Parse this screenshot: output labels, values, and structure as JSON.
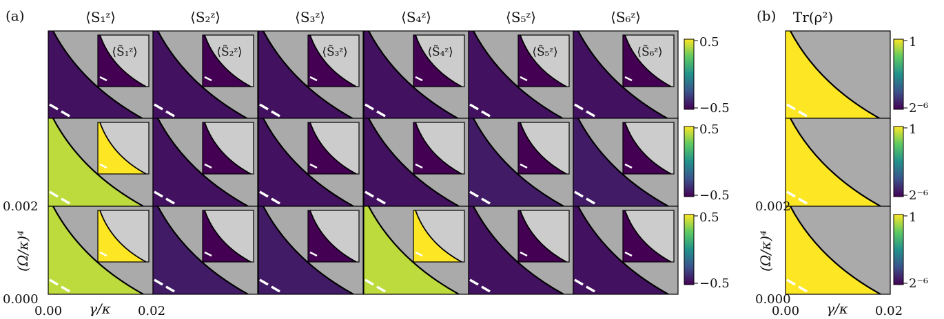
{
  "chart_data": {
    "type": "heatmap",
    "panel_a": {
      "label": "(a)",
      "column_titles": [
        "⟨S₁ᶻ⟩",
        "⟨S₂ᶻ⟩",
        "⟨S₃ᶻ⟩",
        "⟨S₄ᶻ⟩",
        "⟨S₅ᶻ⟩",
        "⟨S₆ᶻ⟩"
      ],
      "inset_titles": [
        "⟨S̃₁ᶻ⟩",
        "⟨S̃₂ᶻ⟩",
        "⟨S̃₃ᶻ⟩",
        "⟨S̃₄ᶻ⟩",
        "⟨S̃₅ᶻ⟩",
        "⟨S̃₆ᶻ⟩"
      ],
      "rows": [
        {
          "main": [
            -0.45,
            -0.45,
            -0.45,
            -0.45,
            -0.45,
            -0.45
          ],
          "inset": [
            -0.5,
            -0.5,
            -0.5,
            -0.5,
            -0.5,
            -0.5
          ]
        },
        {
          "main": [
            0.4,
            -0.45,
            -0.45,
            -0.45,
            -0.42,
            -0.42
          ],
          "inset": [
            0.5,
            -0.5,
            -0.5,
            -0.5,
            -0.5,
            -0.5
          ]
        },
        {
          "main": [
            0.4,
            -0.42,
            -0.42,
            0.4,
            -0.45,
            -0.45
          ],
          "inset": [
            0.5,
            -0.5,
            -0.5,
            0.5,
            -0.5,
            -0.5
          ]
        }
      ],
      "colorbar": {
        "max_label": "0.5",
        "min_label": "−0.5",
        "colormap": "viridis",
        "range": [
          -0.5,
          0.5
        ]
      }
    },
    "panel_b": {
      "label": "(b)",
      "title": "Tr(ρ²)",
      "rows": [
        0.95,
        0.85,
        0.82
      ],
      "colorbar": {
        "max_label": "1",
        "min_label": "2⁻⁶",
        "colormap": "viridis",
        "scale": "log2",
        "range": [
          -6,
          0
        ]
      }
    },
    "axes": {
      "xlabel": "γ/κ",
      "ylabel": "(Ω/κ)⁴",
      "x_ticks": [
        "0.00",
        "0.02"
      ],
      "y_ticks": [
        "0.000",
        "0.002"
      ],
      "xlim": [
        0,
        0.02
      ],
      "ylim": [
        0,
        0.002
      ]
    },
    "boundary_colors": {
      "outside": "#aaaaaa",
      "inset_outside": "#cccccc",
      "boundary": "#000000",
      "dashed": "#ffffff"
    }
  }
}
